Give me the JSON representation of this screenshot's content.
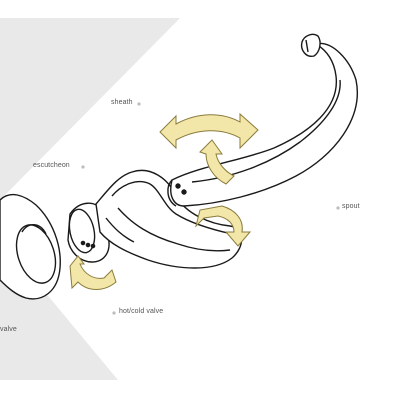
{
  "labels": {
    "sheath": "sheath",
    "escutcheon": "escutcheon",
    "spout": "spout",
    "hot_cold_valve": "hot/cold valve",
    "valve_partial": "valve"
  },
  "colors": {
    "background_band": "#e9e9e9",
    "diagonal_panel": "#ffffff",
    "outline": "#1a1a1a",
    "arrow_fill": "#f3e6a9",
    "arrow_stroke": "#8a7c3c",
    "label_text": "#555555"
  },
  "icons": [
    "rotation-arrow",
    "swap-arrow"
  ]
}
